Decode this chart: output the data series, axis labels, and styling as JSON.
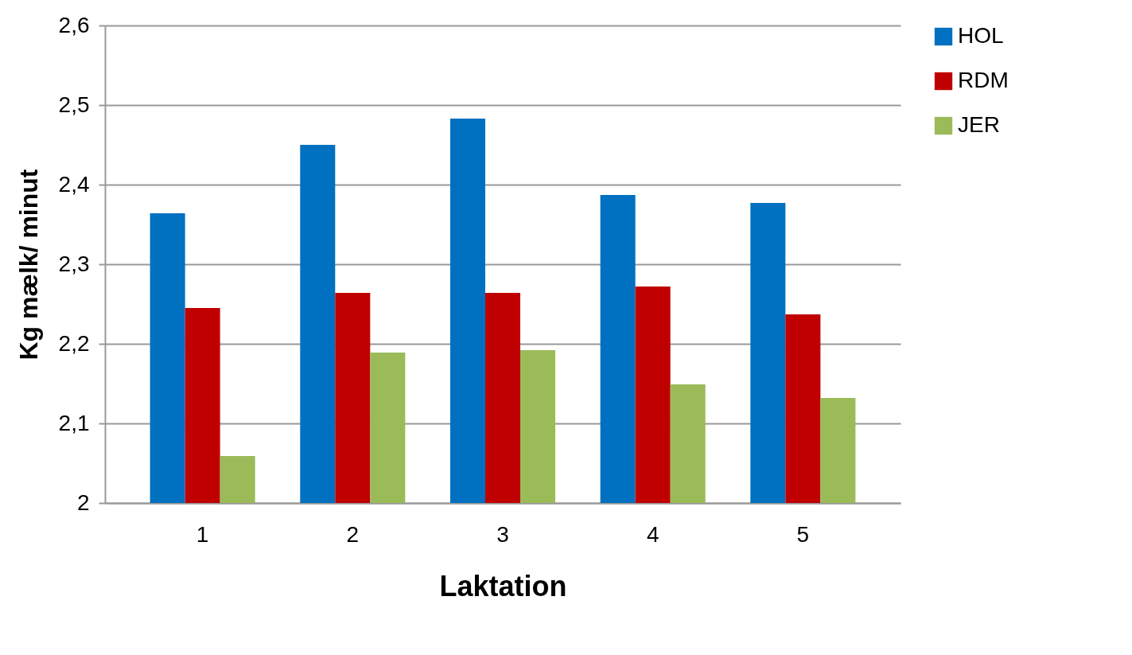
{
  "chart_data": {
    "type": "bar",
    "xlabel": "Laktation",
    "ylabel": "Kg mælk/ minut",
    "categories": [
      "1",
      "2",
      "3",
      "4",
      "5"
    ],
    "series": [
      {
        "name": "HOL",
        "color": "#0070c0",
        "values": [
          2.364,
          2.45,
          2.483,
          2.387,
          2.377
        ]
      },
      {
        "name": "RDM",
        "color": "#c00000",
        "values": [
          2.245,
          2.264,
          2.264,
          2.272,
          2.237
        ]
      },
      {
        "name": "JER",
        "color": "#9bbb59",
        "values": [
          2.059,
          2.189,
          2.192,
          2.149,
          2.132
        ]
      }
    ],
    "ylim": [
      2,
      2.6
    ],
    "yticks": [
      2,
      {
        "value": 2.1,
        "label": "2,1"
      },
      {
        "value": 2.2,
        "label": "2,2"
      },
      {
        "value": 2.3,
        "label": "2,3"
      },
      {
        "value": 2.4,
        "label": "2,4"
      },
      {
        "value": 2.5,
        "label": "2,5"
      },
      {
        "value": 2.6,
        "label": "2,6"
      }
    ],
    "grid": "y",
    "legend": "right"
  }
}
